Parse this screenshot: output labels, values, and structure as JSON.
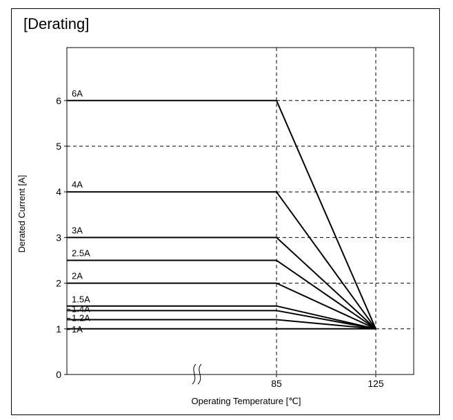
{
  "chart_data": {
    "type": "line",
    "title": "[Derating]",
    "xlabel": "Operating Temperature [℃]",
    "ylabel": "Derated Current [A]",
    "ylim": [
      0,
      7
    ],
    "y_ticks": [
      "0",
      "1",
      "2",
      "3",
      "4",
      "5",
      "6"
    ],
    "x_ticks": [
      "85",
      "125"
    ],
    "x_break": true,
    "grid": "dashed at 85, 125 and each integer current",
    "series": [
      {
        "name": "6A",
        "current": 6,
        "points": [
          [
            null,
            6
          ],
          [
            85,
            6
          ],
          [
            125,
            1
          ]
        ]
      },
      {
        "name": "4A",
        "current": 4,
        "points": [
          [
            null,
            4
          ],
          [
            85,
            4
          ],
          [
            125,
            1
          ]
        ]
      },
      {
        "name": "3A",
        "current": 3,
        "points": [
          [
            null,
            3
          ],
          [
            85,
            3
          ],
          [
            125,
            1
          ]
        ]
      },
      {
        "name": "2.5A",
        "current": 2.5,
        "points": [
          [
            null,
            2.5
          ],
          [
            85,
            2.5
          ],
          [
            125,
            1
          ]
        ]
      },
      {
        "name": "2A",
        "current": 2,
        "points": [
          [
            null,
            2
          ],
          [
            85,
            2
          ],
          [
            125,
            1
          ]
        ]
      },
      {
        "name": "1.5A",
        "current": 1.5,
        "points": [
          [
            null,
            1.5
          ],
          [
            85,
            1.5
          ],
          [
            125,
            1
          ]
        ]
      },
      {
        "name": "1.4A",
        "current": 1.4,
        "points": [
          [
            null,
            1.4
          ],
          [
            85,
            1.4
          ],
          [
            125,
            1
          ]
        ]
      },
      {
        "name": "1.2A",
        "current": 1.2,
        "points": [
          [
            null,
            1.2
          ],
          [
            85,
            1.2
          ],
          [
            125,
            1
          ]
        ]
      },
      {
        "name": "1A",
        "current": 1,
        "points": [
          [
            null,
            1
          ],
          [
            85,
            1
          ],
          [
            125,
            1
          ]
        ]
      }
    ]
  }
}
